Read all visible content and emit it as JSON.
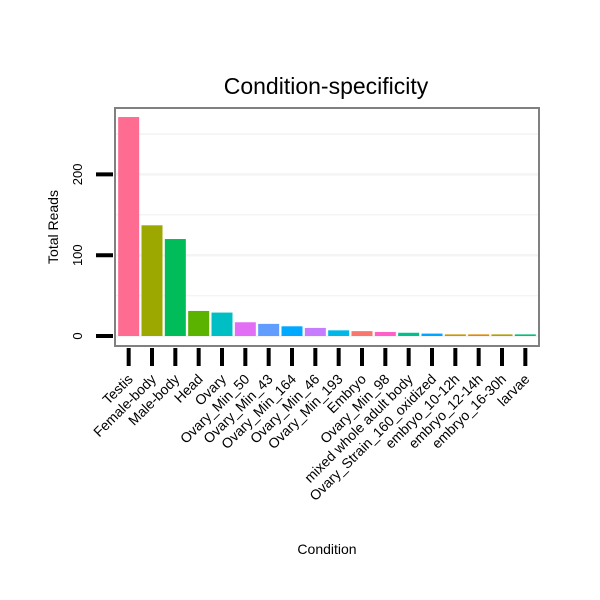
{
  "chart_data": {
    "type": "bar",
    "title": "Condition-specificity",
    "xlabel": "Condition",
    "ylabel": "Total Reads",
    "ylim": [
      0,
      285
    ],
    "yticks": [
      0,
      100,
      200
    ],
    "grid": true,
    "legend": "none",
    "categories": [
      "Testis",
      "Female-body",
      "Male-body",
      "Head",
      "Ovary",
      "Ovary_Min_50",
      "Ovary_Min_43",
      "Ovary_Min_164",
      "Ovary_Min_46",
      "Ovary_Min_193",
      "Embryo",
      "Ovary_Min_98",
      "mixed whole adult body",
      "Ovary_Strain_160_oxidized",
      "embryo_10-12h",
      "embryo_12-14h",
      "embryo_16-30h",
      "larvae"
    ],
    "values": [
      271,
      137,
      120,
      31,
      29,
      17,
      15,
      12,
      10,
      7,
      6,
      5,
      4,
      3,
      2,
      2,
      2,
      2
    ],
    "colors": [
      "#FF6C91",
      "#9CA700",
      "#00BC59",
      "#5BB300",
      "#00BFC4",
      "#E36EF6",
      "#619CFF",
      "#00A9FF",
      "#C77CFF",
      "#00B8E7",
      "#F8766D",
      "#FF61C9",
      "#00C08D",
      "#00A5FF",
      "#C99800",
      "#E38900",
      "#AFA100",
      "#00BF7D"
    ]
  }
}
